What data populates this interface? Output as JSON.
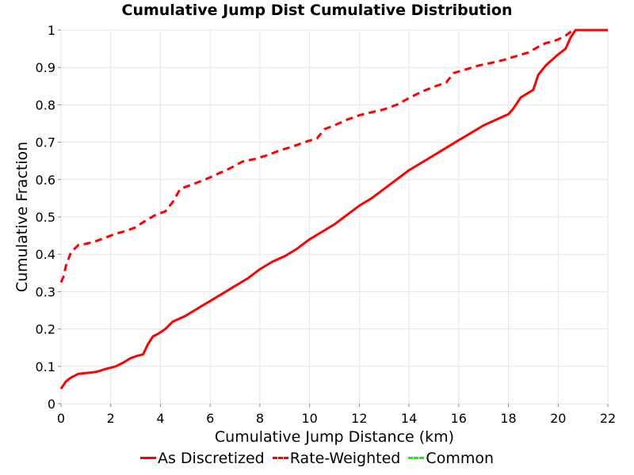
{
  "chart_data": {
    "type": "line",
    "title": "Cumulative Jump Dist Cumulative Distribution",
    "xlabel": "Cumulative Jump Distance (km)",
    "ylabel": "Cumulative Fraction",
    "xlim": [
      0,
      22
    ],
    "ylim": [
      0,
      1
    ],
    "xticks": [
      "0",
      "2",
      "4",
      "6",
      "8",
      "10",
      "12",
      "14",
      "16",
      "18",
      "20",
      "22"
    ],
    "yticks": [
      "0",
      "0.1",
      "0.2",
      "0.3",
      "0.4",
      "0.5",
      "0.6",
      "0.7",
      "0.8",
      "0.9",
      "1"
    ],
    "grid": true,
    "legend_position": "bottom",
    "series": [
      {
        "name": "As Discretized",
        "color": "#ff0000",
        "style": "solid",
        "x": [
          0,
          0.1,
          0.2,
          0.4,
          0.7,
          1.0,
          1.4,
          1.8,
          2.2,
          2.5,
          2.8,
          3.0,
          3.3,
          3.5,
          3.7,
          3.9,
          4.2,
          4.5,
          5.0,
          5.5,
          6.0,
          6.5,
          7.0,
          7.5,
          8.0,
          8.5,
          9.0,
          9.5,
          10.0,
          10.5,
          11.0,
          11.5,
          12.0,
          12.5,
          13.0,
          13.5,
          14.0,
          14.5,
          15.0,
          15.5,
          16.0,
          16.5,
          17.0,
          17.5,
          18.0,
          18.2,
          18.5,
          19.0,
          19.2,
          19.5,
          20.0,
          20.3,
          20.5,
          20.7,
          21.0,
          21.5,
          22.0
        ],
        "y": [
          0.04,
          0.05,
          0.06,
          0.07,
          0.08,
          0.082,
          0.085,
          0.093,
          0.1,
          0.11,
          0.122,
          0.127,
          0.132,
          0.16,
          0.18,
          0.187,
          0.2,
          0.22,
          0.235,
          0.255,
          0.275,
          0.295,
          0.315,
          0.335,
          0.36,
          0.38,
          0.395,
          0.415,
          0.44,
          0.46,
          0.48,
          0.505,
          0.53,
          0.55,
          0.575,
          0.6,
          0.625,
          0.645,
          0.665,
          0.685,
          0.705,
          0.725,
          0.745,
          0.76,
          0.775,
          0.79,
          0.82,
          0.84,
          0.88,
          0.905,
          0.935,
          0.95,
          0.98,
          1.0,
          1.0,
          1.0,
          1.0
        ]
      },
      {
        "name": "Rate-Weighted",
        "color": "#ff0000",
        "style": "dashed",
        "x": [
          0,
          0.1,
          0.2,
          0.4,
          0.7,
          1.0,
          1.4,
          1.8,
          2.2,
          2.6,
          3.0,
          3.4,
          3.8,
          4.2,
          4.5,
          4.8,
          5.2,
          5.8,
          6.3,
          6.8,
          7.3,
          7.8,
          8.3,
          8.8,
          9.3,
          9.8,
          10.3,
          10.6,
          11.0,
          11.5,
          12.0,
          12.5,
          13.0,
          13.5,
          14.0,
          14.5,
          15.0,
          15.5,
          15.8,
          16.3,
          16.8,
          17.3,
          17.8,
          18.3,
          18.8,
          19.2,
          19.5,
          19.8,
          20.0,
          20.3,
          20.6,
          21.0,
          21.5,
          22.0
        ],
        "y": [
          0.325,
          0.34,
          0.37,
          0.405,
          0.425,
          0.428,
          0.435,
          0.445,
          0.455,
          0.462,
          0.472,
          0.49,
          0.505,
          0.515,
          0.54,
          0.575,
          0.585,
          0.6,
          0.615,
          0.63,
          0.648,
          0.655,
          0.665,
          0.678,
          0.688,
          0.7,
          0.71,
          0.735,
          0.745,
          0.76,
          0.772,
          0.78,
          0.788,
          0.8,
          0.818,
          0.835,
          0.848,
          0.86,
          0.885,
          0.895,
          0.905,
          0.912,
          0.92,
          0.93,
          0.94,
          0.955,
          0.965,
          0.97,
          0.975,
          0.985,
          1.0,
          1.0,
          1.0,
          1.0
        ]
      },
      {
        "name": "Common",
        "color": "#00ff00",
        "style": "dashed",
        "x": [],
        "y": []
      }
    ]
  }
}
